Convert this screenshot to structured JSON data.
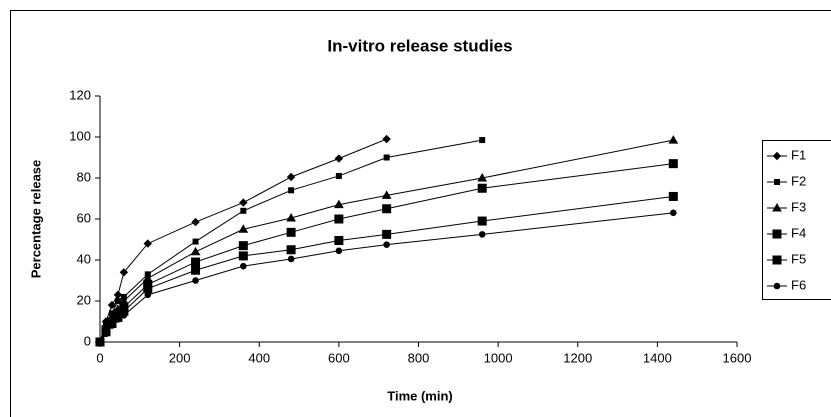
{
  "chart_data": {
    "type": "line",
    "title": "In-vitro release studies",
    "x_label": "Time (min)",
    "y_label": "Percentage release",
    "xlim": [
      0,
      1600
    ],
    "xticks": [
      0,
      200,
      400,
      600,
      800,
      1000,
      1200,
      1400,
      1600
    ],
    "ylim": [
      0,
      120
    ],
    "yticks": [
      0,
      20,
      40,
      60,
      80,
      100,
      120
    ],
    "grid": false,
    "legend": "right",
    "series": [
      {
        "name": "F1",
        "color": "#000000",
        "marker": "diamond",
        "x": [
          0,
          15,
          30,
          45,
          60,
          120,
          240,
          360,
          480,
          600,
          720
        ],
        "values": [
          0,
          10,
          18,
          23,
          34,
          48,
          58.5,
          68,
          80.5,
          89.5,
          99
        ]
      },
      {
        "name": "F2",
        "color": "#000000",
        "marker": "square",
        "x": [
          0,
          15,
          30,
          45,
          60,
          120,
          240,
          360,
          480,
          600,
          720,
          960
        ],
        "values": [
          0,
          8,
          14,
          20,
          22,
          33,
          49,
          64,
          74,
          81,
          90,
          98.5
        ]
      },
      {
        "name": "F3",
        "color": "#000000",
        "marker": "triangle",
        "x": [
          0,
          15,
          30,
          45,
          60,
          120,
          240,
          360,
          480,
          600,
          720,
          960,
          1440
        ],
        "values": [
          0,
          7,
          12,
          16,
          20,
          31,
          44,
          55,
          60.5,
          67,
          71.5,
          80,
          98.5
        ]
      },
      {
        "name": "F4",
        "color": "#000000",
        "marker": "big-square",
        "x": [
          0,
          15,
          30,
          45,
          60,
          120,
          240,
          360,
          480,
          600,
          720,
          960,
          1440
        ],
        "values": [
          0,
          6,
          10,
          14,
          17,
          28,
          39,
          47,
          53.5,
          60,
          65,
          75,
          87
        ]
      },
      {
        "name": "F5",
        "color": "#000000",
        "marker": "big-square",
        "x": [
          0,
          15,
          30,
          45,
          60,
          120,
          240,
          360,
          480,
          600,
          720,
          960,
          1440
        ],
        "values": [
          0,
          5,
          9,
          12,
          15,
          26,
          35,
          42,
          45,
          49.5,
          52.5,
          59,
          71
        ]
      },
      {
        "name": "F6",
        "color": "#000000",
        "marker": "circle",
        "x": [
          0,
          15,
          30,
          45,
          60,
          120,
          240,
          360,
          480,
          600,
          720,
          960,
          1440
        ],
        "values": [
          0,
          4,
          8,
          11,
          13,
          23,
          30,
          37,
          40.5,
          44.5,
          47.5,
          52.5,
          63
        ]
      }
    ]
  }
}
